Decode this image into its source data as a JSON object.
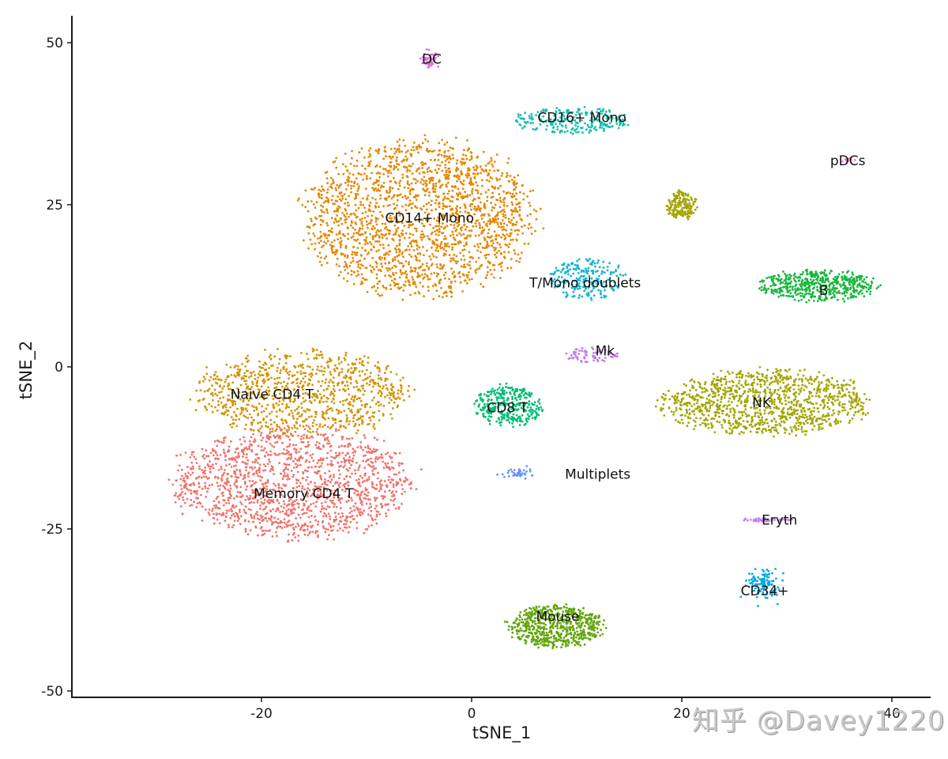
{
  "chart_data": {
    "type": "scatter",
    "title": "",
    "xlabel": "tSNE_1",
    "ylabel": "tSNE_2",
    "xlim": [
      -38.5,
      43.5
    ],
    "ylim": [
      -50.5,
      54.5
    ],
    "grid": false,
    "legend": "none (labels drawn on clusters)",
    "x_ticks": [
      -20,
      0,
      20,
      40
    ],
    "x_tick_labels": [
      "-20",
      "0",
      "20",
      "40"
    ],
    "y_ticks": [
      -50,
      -25,
      0,
      25,
      50
    ],
    "y_tick_labels": [
      "-50",
      "-25",
      "0",
      "25",
      "50"
    ],
    "clusters": [
      {
        "name": "Memory CD4 T",
        "color": "#F0736B",
        "label_xy": [
          -16,
          -19.5
        ],
        "center": [
          -17,
          -18
        ],
        "spread": [
          11.5,
          8.5
        ],
        "n": 1500
      },
      {
        "name": "Naive CD4 T",
        "color": "#D39200",
        "label_xy": [
          -19,
          -4.2
        ],
        "center": [
          -16,
          -4
        ],
        "spread": [
          10.5,
          6.5
        ],
        "n": 900
      },
      {
        "name": "CD14+ Mono",
        "color": "#E58700",
        "label_xy": [
          -4,
          23
        ],
        "center": [
          -5,
          23
        ],
        "spread": [
          11,
          12
        ],
        "n": 1900
      },
      {
        "name": "DC",
        "color": "#E36DE0",
        "label_xy": [
          -3.8,
          47.5
        ],
        "center": [
          -4,
          47.5
        ],
        "spread": [
          0.8,
          1.2
        ],
        "n": 40
      },
      {
        "name": "CD16+ Mono",
        "color": "#14BFB0",
        "label_xy": [
          10.5,
          38.5
        ],
        "center": [
          9.5,
          38
        ],
        "spread": [
          5.5,
          2
        ],
        "n": 240
      },
      {
        "name": "pDCs",
        "color": "#F27ACB",
        "label_xy": [
          35.8,
          31.8
        ],
        "center": [
          35.9,
          32
        ],
        "spread": [
          0.5,
          0.4
        ],
        "n": 10
      },
      {
        "name": "T/Mono doublets",
        "color": "#11B4D2",
        "label_xy": [
          10.8,
          13
        ],
        "center": [
          11,
          13.5
        ],
        "spread": [
          3.5,
          3.2
        ],
        "n": 220
      },
      {
        "name": "B",
        "color": "#19B63C",
        "label_xy": [
          33.5,
          11.8
        ],
        "center": [
          33,
          12.5
        ],
        "spread": [
          5.5,
          2.5
        ],
        "n": 500
      },
      {
        "name": "Mk",
        "color": "#BF7CF0",
        "label_xy": [
          12.7,
          2.5
        ],
        "center": [
          11.5,
          1.8
        ],
        "spread": [
          2.5,
          1.2
        ],
        "n": 70
      },
      {
        "name": "CD8 T",
        "color": "#00BE73",
        "label_xy": [
          3.4,
          -6.3
        ],
        "center": [
          3.5,
          -6
        ],
        "spread": [
          3.2,
          3.2
        ],
        "n": 320
      },
      {
        "name": "NK",
        "color": "#A3A500",
        "label_xy": [
          27.6,
          -5.5
        ],
        "center": [
          28,
          -5.5
        ],
        "spread": [
          10,
          5
        ],
        "n": 1100
      },
      {
        "name": "Multiplets",
        "color": "#6993F5",
        "label_xy": [
          12,
          -16.5
        ],
        "center": [
          4.5,
          -16.5
        ],
        "spread": [
          1.2,
          0.7
        ],
        "n": 40
      },
      {
        "name": "Eryth",
        "color": "#C67CF2",
        "label_xy": [
          29.3,
          -23.6
        ],
        "center": [
          28,
          -23.6
        ],
        "spread": [
          2.4,
          0.3
        ],
        "n": 45
      },
      {
        "name": "CD34+",
        "color": "#07A8E6",
        "label_xy": [
          27.9,
          -34.5
        ],
        "center": [
          27.8,
          -33.5
        ],
        "spread": [
          1.3,
          1.8
        ],
        "n": 120
      },
      {
        "name": "Mouse",
        "color": "#63A50E",
        "label_xy": [
          8.2,
          -38.5
        ],
        "center": [
          8,
          -40
        ],
        "spread": [
          4.5,
          3.3
        ],
        "n": 650
      },
      {
        "name": "Unlabeled (olive upper)",
        "color": "#A3A500",
        "label_xy": null,
        "center": [
          20,
          25
        ],
        "spread": [
          1.5,
          2.2
        ],
        "n": 170
      }
    ]
  },
  "axes": {
    "x_title": "tSNE_1",
    "y_title": "tSNE_2"
  },
  "watermark": "知乎 @Davey1220"
}
